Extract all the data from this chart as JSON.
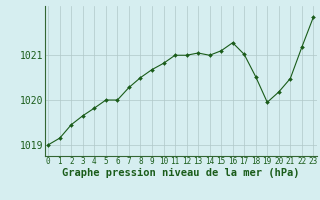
{
  "x": [
    0,
    1,
    2,
    3,
    4,
    5,
    6,
    7,
    8,
    9,
    10,
    11,
    12,
    13,
    14,
    15,
    16,
    17,
    18,
    19,
    20,
    21,
    22,
    23
  ],
  "y": [
    1019.0,
    1019.15,
    1019.45,
    1019.65,
    1019.82,
    1020.0,
    1020.0,
    1020.28,
    1020.5,
    1020.68,
    1020.82,
    1021.0,
    1021.0,
    1021.05,
    1021.0,
    1021.1,
    1021.28,
    1021.02,
    1020.52,
    1019.95,
    1020.18,
    1020.48,
    1021.18,
    1021.85
  ],
  "ylim": [
    1018.75,
    1022.1
  ],
  "yticks": [
    1019,
    1020,
    1021
  ],
  "xticks": [
    0,
    1,
    2,
    3,
    4,
    5,
    6,
    7,
    8,
    9,
    10,
    11,
    12,
    13,
    14,
    15,
    16,
    17,
    18,
    19,
    20,
    21,
    22,
    23
  ],
  "xlabel": "Graphe pression niveau de la mer (hPa)",
  "line_color": "#1a5c1a",
  "marker_color": "#1a5c1a",
  "bg_color": "#d6eef0",
  "grid_color": "#b0c8c8",
  "fig_bg": "#d6eef0",
  "label_color": "#1a5c1a",
  "tick_color": "#1a5c1a",
  "xlabel_fontsize": 7.5,
  "ytick_fontsize": 7,
  "xtick_fontsize": 5.5
}
